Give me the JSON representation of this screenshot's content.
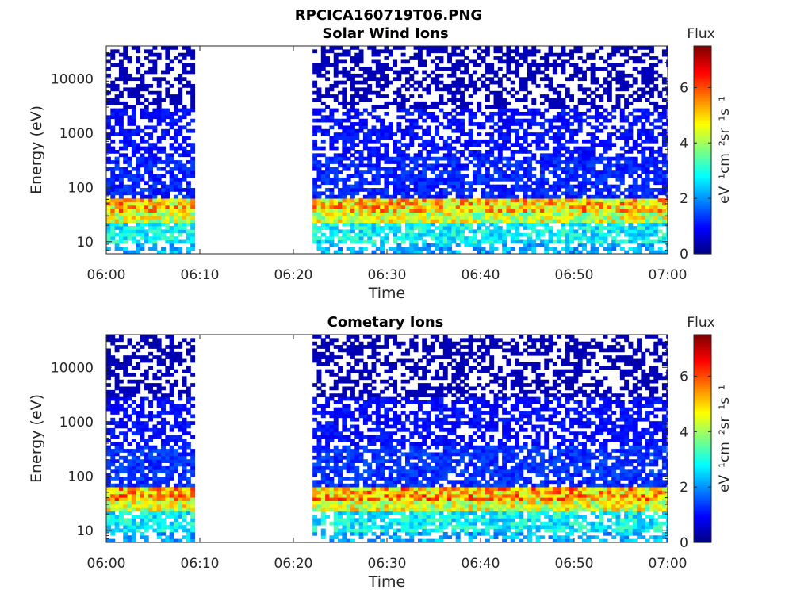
{
  "figure": {
    "title": "RPCICA160719T06.PNG"
  },
  "colors": {
    "colormap": "jet",
    "background": "#ffffff",
    "axis": "#262626"
  },
  "chart_data": [
    {
      "type": "heatmap",
      "title": "Solar Wind Ions",
      "xlabel": "Time",
      "ylabel": "Energy (eV)",
      "x_ticks": [
        "06:00",
        "06:10",
        "06:20",
        "06:30",
        "06:40",
        "06:50",
        "07:00"
      ],
      "xlim": [
        "06:00",
        "07:00"
      ],
      "y_scale": "log",
      "y_ticks": [
        "10",
        "100",
        "1000",
        "10000"
      ],
      "ylim": [
        6,
        40000
      ],
      "colorbar": {
        "label": "Flux",
        "unit_label": "eV⁻¹cm⁻²sr⁻¹s⁻¹",
        "ticks": [
          "0",
          "2",
          "4",
          "6"
        ],
        "range": [
          0,
          7.5
        ]
      },
      "data_gap": [
        "06:09",
        "06:22"
      ],
      "bands": [
        {
          "energy_range": [
            6,
            10
          ],
          "flux": 2.2,
          "coverage": 0.55
        },
        {
          "energy_range": [
            10,
            22
          ],
          "flux": 2.8,
          "coverage": 0.8
        },
        {
          "energy_range": [
            22,
            35
          ],
          "flux": 4.3,
          "coverage": 1.0
        },
        {
          "energy_range": [
            35,
            65
          ],
          "flux": 5.0,
          "coverage": 1.0
        },
        {
          "energy_range": [
            65,
            350
          ],
          "flux": 1.2,
          "coverage": 0.75
        },
        {
          "energy_range": [
            350,
            3000
          ],
          "flux": 1.0,
          "coverage": 0.6
        },
        {
          "energy_range": [
            3000,
            40000
          ],
          "flux": 0.4,
          "coverage": 0.5
        }
      ]
    },
    {
      "type": "heatmap",
      "title": "Cometary Ions",
      "xlabel": "Time",
      "ylabel": "Energy (eV)",
      "x_ticks": [
        "06:00",
        "06:10",
        "06:20",
        "06:30",
        "06:40",
        "06:50",
        "07:00"
      ],
      "xlim": [
        "06:00",
        "07:00"
      ],
      "y_scale": "log",
      "y_ticks": [
        "10",
        "100",
        "1000",
        "10000"
      ],
      "ylim": [
        6,
        40000
      ],
      "colorbar": {
        "label": "Flux",
        "unit_label": "eV⁻¹cm⁻²sr⁻¹s⁻¹",
        "ticks": [
          "0",
          "2",
          "4",
          "6"
        ],
        "range": [
          0,
          7.5
        ]
      },
      "data_gap": [
        "06:09",
        "06:22"
      ],
      "bands": [
        {
          "energy_range": [
            6,
            10
          ],
          "flux": 2.2,
          "coverage": 0.55
        },
        {
          "energy_range": [
            10,
            22
          ],
          "flux": 2.8,
          "coverage": 0.8
        },
        {
          "energy_range": [
            22,
            35
          ],
          "flux": 4.4,
          "coverage": 1.0
        },
        {
          "energy_range": [
            35,
            65
          ],
          "flux": 5.2,
          "coverage": 1.0
        },
        {
          "energy_range": [
            65,
            350
          ],
          "flux": 1.3,
          "coverage": 0.75
        },
        {
          "energy_range": [
            350,
            3000
          ],
          "flux": 1.0,
          "coverage": 0.6
        },
        {
          "energy_range": [
            3000,
            40000
          ],
          "flux": 0.4,
          "coverage": 0.5
        }
      ]
    }
  ]
}
